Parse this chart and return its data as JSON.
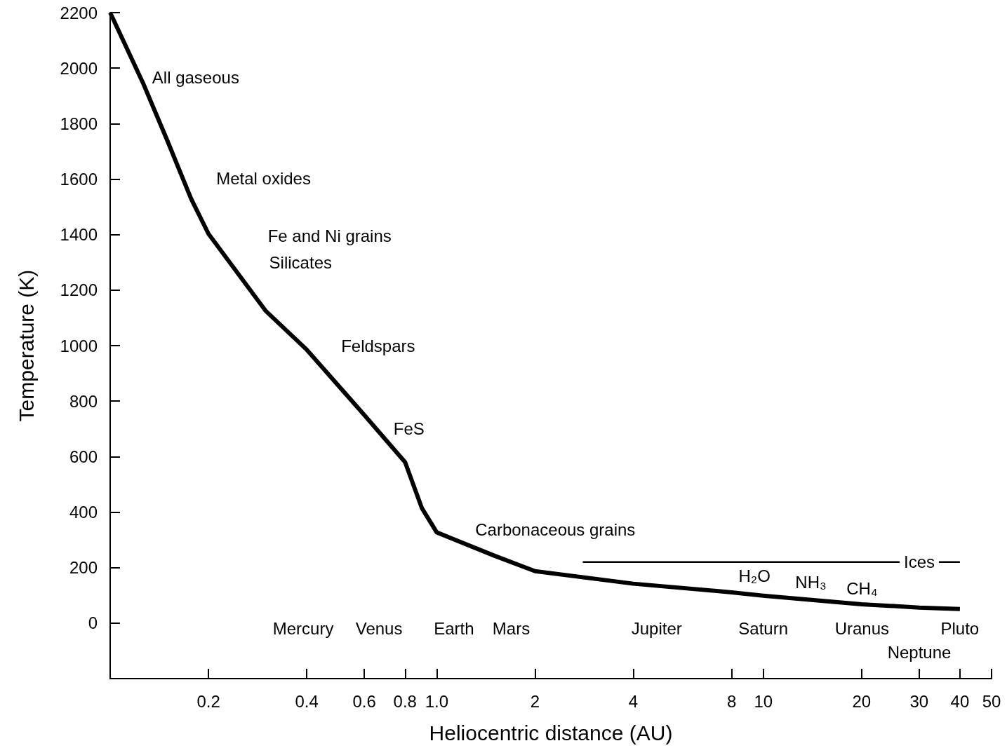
{
  "chart_data": {
    "type": "line",
    "xlabel": "Heliocentric distance (AU)",
    "ylabel": "Temperature (K)",
    "log": "x",
    "grid": false,
    "marker": "none",
    "line_style": "solid",
    "xlim": [
      0.1,
      50
    ],
    "xticks": [
      0.2,
      0.4,
      0.6,
      0.8,
      {
        "value": 1,
        "label": "1.0"
      },
      2,
      4,
      8,
      10,
      20,
      30,
      40,
      50
    ],
    "ylim": [
      -200,
      2200
    ],
    "yticks": [
      0,
      200,
      400,
      600,
      800,
      1000,
      1200,
      1400,
      1600,
      1800,
      2000,
      2200
    ],
    "series": [
      {
        "color": "#000000",
        "x": [
          0.1,
          0.126,
          0.149,
          0.177,
          0.2,
          0.3,
          0.4,
          0.6,
          0.8,
          0.9,
          1,
          1.5,
          2,
          4,
          8,
          10,
          20,
          30,
          40
        ],
        "values": [
          2200,
          1947,
          1744,
          1529,
          1403,
          1124,
          985,
          750,
          580,
          415,
          327,
          243,
          187,
          142,
          111,
          99,
          68,
          56,
          51
        ]
      },
      {
        "color": "#000000",
        "line_style": "solid",
        "x": [
          2.8,
          40
        ],
        "values": [
          220,
          220
        ]
      }
    ],
    "annotations": [
      "All gaseous",
      "Metal oxides",
      "Fe and Ni grains",
      "Silicates",
      "Feldspars",
      "FeS",
      "Carbonaceous grains",
      "Ices",
      "H₂O",
      "NH₃",
      "CH₄",
      "Mercury",
      "Venus",
      "Earth",
      "Mars",
      "Jupiter",
      "Saturn",
      "Uranus",
      "Neptune",
      "Pluto"
    ]
  }
}
